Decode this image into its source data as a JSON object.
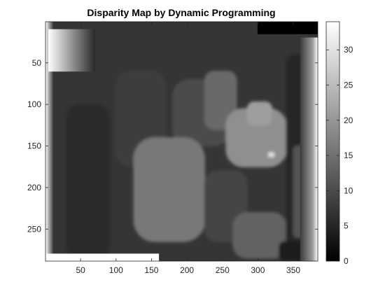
{
  "chart_data": {
    "type": "heatmap",
    "title": "Disparity Map by Dynamic Programming",
    "xlabel": "",
    "ylabel": "",
    "x_range": [
      0.5,
      384.5
    ],
    "y_range": [
      0.5,
      288.5
    ],
    "x_ticks": [
      50,
      100,
      150,
      200,
      250,
      300,
      350
    ],
    "y_ticks": [
      50,
      100,
      150,
      200,
      250
    ],
    "y_reversed": true,
    "colormap": "gray",
    "color_limits": [
      0,
      34
    ],
    "colorbar_ticks": [
      0,
      5,
      10,
      15,
      20,
      25,
      30
    ],
    "grid": false,
    "regions": [
      {
        "name": "background",
        "x": [
          1,
          384
        ],
        "y": [
          1,
          288
        ],
        "value": 7
      },
      {
        "name": "left-dark-column",
        "x": [
          30,
          90
        ],
        "y": [
          100,
          288
        ],
        "value": 5.5
      },
      {
        "name": "top-left-band",
        "x": [
          5,
          70
        ],
        "y": [
          10,
          60
        ],
        "value": 6
      },
      {
        "name": "upper-mid-block",
        "x": [
          100,
          170
        ],
        "y": [
          60,
          175
        ],
        "value": 8
      },
      {
        "name": "center-mid-block",
        "x": [
          180,
          260
        ],
        "y": [
          70,
          150
        ],
        "value": 10
      },
      {
        "name": "upper-object",
        "x": [
          225,
          270
        ],
        "y": [
          60,
          130
        ],
        "value": 14
      },
      {
        "name": "bright-object",
        "x": [
          255,
          340
        ],
        "y": [
          105,
          175
        ],
        "value": 19
      },
      {
        "name": "bright-object-top",
        "x": [
          285,
          320
        ],
        "y": [
          97,
          125
        ],
        "value": 21
      },
      {
        "name": "highlight",
        "x": [
          315,
          323
        ],
        "y": [
          158,
          163
        ],
        "value": 30
      },
      {
        "name": "large-left-object",
        "x": [
          125,
          225
        ],
        "y": [
          140,
          265
        ],
        "value": 16
      },
      {
        "name": "lower-mid-dark",
        "x": [
          225,
          285
        ],
        "y": [
          180,
          265
        ],
        "value": 9
      },
      {
        "name": "lower-mid-light",
        "x": [
          265,
          340
        ],
        "y": [
          230,
          285
        ],
        "value": 13
      },
      {
        "name": "right-dark-region",
        "x": [
          340,
          384
        ],
        "y": [
          40,
          280
        ],
        "value": 5
      },
      {
        "name": "right-mid-block",
        "x": [
          350,
          370
        ],
        "y": [
          150,
          260
        ],
        "value": 11
      },
      {
        "name": "bottom-right-dark",
        "x": [
          330,
          384
        ],
        "y": [
          265,
          288
        ],
        "value": 4
      },
      {
        "name": "top-right-black",
        "x": [
          300,
          384
        ],
        "y": [
          1,
          15
        ],
        "value": 0
      },
      {
        "name": "bottom-left-white",
        "x": [
          1,
          160
        ],
        "y": [
          280,
          288
        ],
        "value": 33
      },
      {
        "name": "left-gradient",
        "x": [
          1,
          12
        ],
        "y": [
          1,
          288
        ],
        "value": 3
      },
      {
        "name": "right-gradient",
        "x": [
          360,
          384
        ],
        "y": [
          20,
          288
        ],
        "value": 25
      }
    ]
  }
}
